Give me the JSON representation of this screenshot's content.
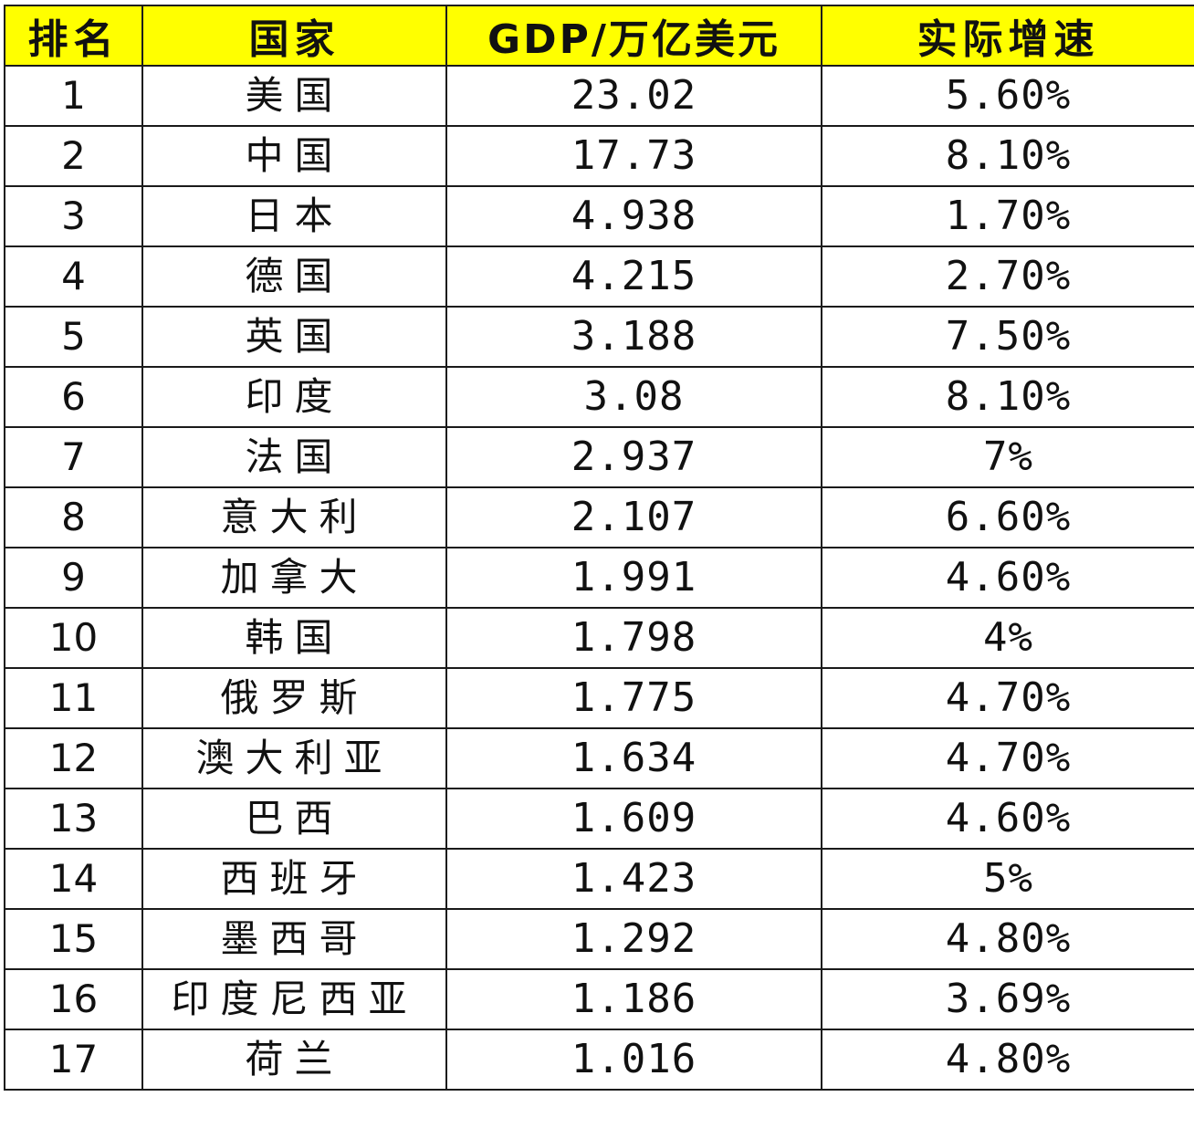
{
  "table": {
    "headers": {
      "rank": "排名",
      "country": "国家",
      "gdp": "GDP/万亿美元",
      "growth": "实际增速"
    },
    "rows": [
      {
        "rank": "1",
        "country": "美国",
        "gdp": "23.02",
        "growth": "5.60%"
      },
      {
        "rank": "2",
        "country": "中国",
        "gdp": "17.73",
        "growth": "8.10%"
      },
      {
        "rank": "3",
        "country": "日本",
        "gdp": "4.938",
        "growth": "1.70%"
      },
      {
        "rank": "4",
        "country": "德国",
        "gdp": "4.215",
        "growth": "2.70%"
      },
      {
        "rank": "5",
        "country": "英国",
        "gdp": "3.188",
        "growth": "7.50%"
      },
      {
        "rank": "6",
        "country": "印度",
        "gdp": "3.08",
        "growth": "8.10%"
      },
      {
        "rank": "7",
        "country": "法国",
        "gdp": "2.937",
        "growth": "7%"
      },
      {
        "rank": "8",
        "country": "意大利",
        "gdp": "2.107",
        "growth": "6.60%"
      },
      {
        "rank": "9",
        "country": "加拿大",
        "gdp": "1.991",
        "growth": "4.60%"
      },
      {
        "rank": "10",
        "country": "韩国",
        "gdp": "1.798",
        "growth": "4%"
      },
      {
        "rank": "11",
        "country": "俄罗斯",
        "gdp": "1.775",
        "growth": "4.70%"
      },
      {
        "rank": "12",
        "country": "澳大利亚",
        "gdp": "1.634",
        "growth": "4.70%"
      },
      {
        "rank": "13",
        "country": "巴西",
        "gdp": "1.609",
        "growth": "4.60%"
      },
      {
        "rank": "14",
        "country": "西班牙",
        "gdp": "1.423",
        "growth": "5%"
      },
      {
        "rank": "15",
        "country": "墨西哥",
        "gdp": "1.292",
        "growth": "4.80%"
      },
      {
        "rank": "16",
        "country": "印度尼西亚",
        "gdp": "1.186",
        "growth": "3.69%"
      },
      {
        "rank": "17",
        "country": "荷兰",
        "gdp": "1.016",
        "growth": "4.80%"
      }
    ]
  },
  "colors": {
    "header_background": "#ffff00",
    "border": "#1a1a1a",
    "text": "#111111"
  }
}
